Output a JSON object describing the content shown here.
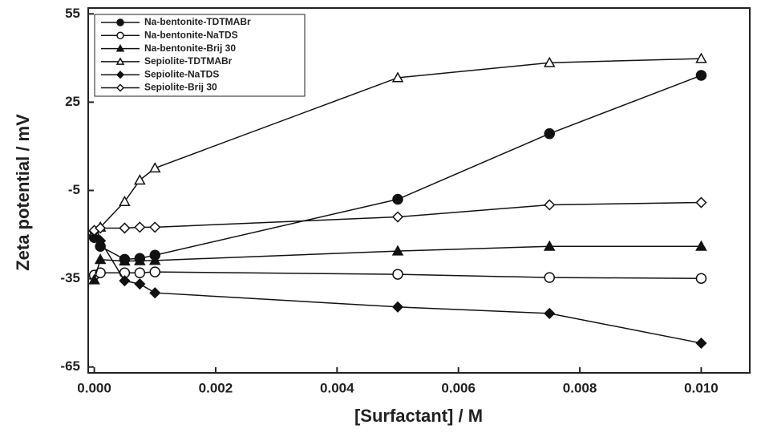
{
  "chart_data": {
    "type": "line",
    "x_label": "[Surfactant] / M",
    "y_label": "Zeta potential / mV",
    "x": [
      0,
      0.0001,
      0.0005,
      0.00075,
      0.001,
      0.005,
      0.0075,
      0.01
    ],
    "series": [
      {
        "name": "Na-bentonite-TDTMABr",
        "color": "#111111",
        "marker": "circle",
        "filled": true,
        "values": [
          -21,
          -24,
          -28.4,
          -28.1,
          -27,
          -8,
          14.3,
          34.1
        ]
      },
      {
        "name": "Na-bentonite-NaTDS",
        "color": "#111111",
        "marker": "circle",
        "filled": false,
        "values": [
          -33.8,
          -33,
          -33,
          -33,
          -32.7,
          -33.5,
          -34.6,
          -34.9
        ]
      },
      {
        "name": "Na-bentonite-Brij 30",
        "color": "#111111",
        "marker": "triangle",
        "filled": true,
        "values": [
          -35.4,
          -28.5,
          -29,
          -28.9,
          -28.8,
          -25.6,
          -24,
          -24
        ]
      },
      {
        "name": "Sepiolite-TDTMABr",
        "color": "#111111",
        "marker": "triangle",
        "filled": false,
        "values": [
          -18.9,
          -17.5,
          -8.8,
          -1.5,
          2.6,
          33.3,
          38.4,
          39.8
        ]
      },
      {
        "name": "Sepiolite-NaTDS",
        "color": "#111111",
        "marker": "diamond",
        "filled": true,
        "values": [
          -18.9,
          -22.1,
          -35.7,
          -36.8,
          -39.8,
          -44.6,
          -46.8,
          -56.9
        ]
      },
      {
        "name": "Sepiolite-Brij 30",
        "color": "#111111",
        "marker": "diamond",
        "filled": false,
        "values": [
          -18.6,
          -17.8,
          -17.8,
          -17.5,
          -17.5,
          -14,
          -9.9,
          -9.1
        ]
      }
    ],
    "xlim": [
      -0.0001,
      0.0108
    ],
    "ylim": [
      -67,
      57
    ],
    "xticks": [
      {
        "value": 0,
        "label": "0.000"
      },
      {
        "value": 0.002,
        "label": "0.002"
      },
      {
        "value": 0.004,
        "label": "0.004"
      },
      {
        "value": 0.006,
        "label": "0.006"
      },
      {
        "value": 0.008,
        "label": "0.008"
      },
      {
        "value": 0.01,
        "label": "0.010"
      }
    ],
    "yticks": [
      55,
      25,
      -5,
      -35,
      -65
    ],
    "legend": "top-left",
    "grid": false
  }
}
